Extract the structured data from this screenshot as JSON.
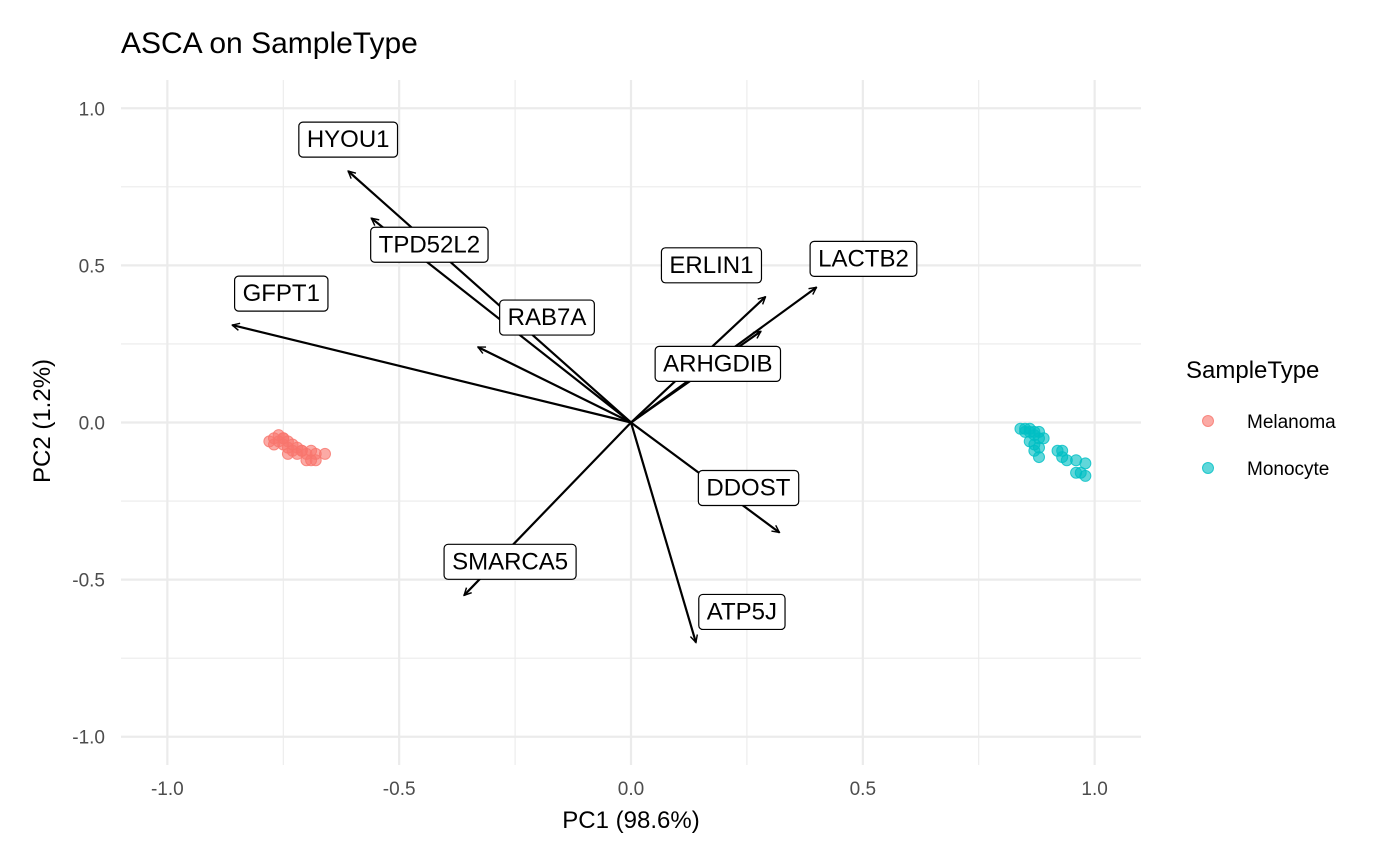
{
  "chart_data": {
    "type": "scatter",
    "title": "ASCA on SampleType",
    "xlabel": "PC1 (98.6%)",
    "ylabel": "PC2 (1.2%)",
    "xlim": [
      -1.1,
      1.1
    ],
    "ylim": [
      -1.09,
      1.09
    ],
    "x_ticks": [
      -1.0,
      -0.5,
      0.0,
      0.5,
      1.0
    ],
    "x_tick_labels": [
      "-1.0",
      "-0.5",
      "0.0",
      "0.5",
      "1.0"
    ],
    "y_ticks": [
      -1.0,
      -0.5,
      0.0,
      0.5,
      1.0
    ],
    "y_tick_labels": [
      "-1.0",
      "-0.5",
      "0.0",
      "0.5",
      "1.0"
    ],
    "grid": true,
    "legend": {
      "title": "SampleType",
      "position": "right"
    },
    "series": [
      {
        "name": "Melanoma",
        "color": "#F8766D",
        "points": [
          [
            -0.76,
            -0.04
          ],
          [
            -0.75,
            -0.05
          ],
          [
            -0.76,
            -0.06
          ],
          [
            -0.78,
            -0.06
          ],
          [
            -0.77,
            -0.07
          ],
          [
            -0.75,
            -0.07
          ],
          [
            -0.74,
            -0.06
          ],
          [
            -0.73,
            -0.07
          ],
          [
            -0.74,
            -0.08
          ],
          [
            -0.72,
            -0.08
          ],
          [
            -0.73,
            -0.09
          ],
          [
            -0.71,
            -0.09
          ],
          [
            -0.74,
            -0.1
          ],
          [
            -0.72,
            -0.1
          ],
          [
            -0.7,
            -0.1
          ],
          [
            -0.69,
            -0.09
          ],
          [
            -0.68,
            -0.1
          ],
          [
            -0.66,
            -0.1
          ],
          [
            -0.7,
            -0.12
          ],
          [
            -0.69,
            -0.12
          ],
          [
            -0.68,
            -0.12
          ],
          [
            -0.71,
            -0.09
          ],
          [
            -0.75,
            -0.05
          ],
          [
            -0.77,
            -0.05
          ]
        ]
      },
      {
        "name": "Monocyte",
        "color": "#00BFC4",
        "points": [
          [
            0.84,
            -0.02
          ],
          [
            0.85,
            -0.02
          ],
          [
            0.86,
            -0.02
          ],
          [
            0.85,
            -0.03
          ],
          [
            0.86,
            -0.03
          ],
          [
            0.87,
            -0.03
          ],
          [
            0.88,
            -0.03
          ],
          [
            0.87,
            -0.04
          ],
          [
            0.88,
            -0.05
          ],
          [
            0.89,
            -0.05
          ],
          [
            0.86,
            -0.06
          ],
          [
            0.87,
            -0.07
          ],
          [
            0.88,
            -0.08
          ],
          [
            0.87,
            -0.09
          ],
          [
            0.92,
            -0.09
          ],
          [
            0.93,
            -0.09
          ],
          [
            0.88,
            -0.11
          ],
          [
            0.93,
            -0.11
          ],
          [
            0.94,
            -0.12
          ],
          [
            0.96,
            -0.12
          ],
          [
            0.98,
            -0.13
          ],
          [
            0.96,
            -0.16
          ],
          [
            0.97,
            -0.16
          ],
          [
            0.98,
            -0.17
          ]
        ]
      }
    ],
    "loadings": [
      {
        "name": "HYOU1",
        "x": -0.61,
        "y": 0.8
      },
      {
        "name": "TPD52L2",
        "x": -0.56,
        "y": 0.65
      },
      {
        "name": "GFPT1",
        "x": -0.86,
        "y": 0.31
      },
      {
        "name": "RAB7A",
        "x": -0.33,
        "y": 0.24
      },
      {
        "name": "ERLIN1",
        "x": 0.29,
        "y": 0.4
      },
      {
        "name": "LACTB2",
        "x": 0.4,
        "y": 0.43
      },
      {
        "name": "ARHGDIB",
        "x": 0.28,
        "y": 0.29
      },
      {
        "name": "SMARCA5",
        "x": -0.36,
        "y": -0.55
      },
      {
        "name": "DDOST",
        "x": 0.32,
        "y": -0.35
      },
      {
        "name": "ATP5J",
        "x": 0.14,
        "y": -0.7
      }
    ]
  }
}
